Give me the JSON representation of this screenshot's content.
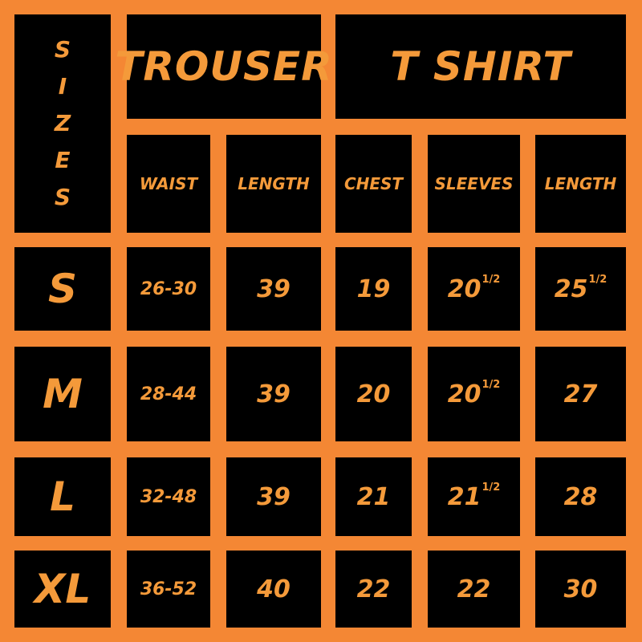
{
  "title_sizes": [
    "S",
    "I",
    "Z",
    "E",
    "S"
  ],
  "group_headers": {
    "trouser": "TROUSER",
    "tshirt": "T SHIRT"
  },
  "column_headers": [
    "WAIST",
    "LENGTH",
    "CHEST",
    "SLEEVES",
    "LENGTH"
  ],
  "rows": [
    {
      "size": "S",
      "cells": [
        {
          "v": "26-30",
          "s": ""
        },
        {
          "v": "39",
          "s": ""
        },
        {
          "v": "19",
          "s": ""
        },
        {
          "v": "20",
          "s": "1/2"
        },
        {
          "v": "25",
          "s": "1/2"
        }
      ]
    },
    {
      "size": "M",
      "cells": [
        {
          "v": "28-44",
          "s": ""
        },
        {
          "v": "39",
          "s": ""
        },
        {
          "v": "20",
          "s": ""
        },
        {
          "v": "20",
          "s": "1/2"
        },
        {
          "v": "27",
          "s": ""
        }
      ]
    },
    {
      "size": "L",
      "cells": [
        {
          "v": "32-48",
          "s": ""
        },
        {
          "v": "39",
          "s": ""
        },
        {
          "v": "21",
          "s": ""
        },
        {
          "v": "21",
          "s": "1/2"
        },
        {
          "v": "28",
          "s": ""
        }
      ]
    },
    {
      "size": "XL",
      "cells": [
        {
          "v": "36-52",
          "s": ""
        },
        {
          "v": "40",
          "s": ""
        },
        {
          "v": "22",
          "s": ""
        },
        {
          "v": "22",
          "s": ""
        },
        {
          "v": "30",
          "s": ""
        }
      ]
    }
  ],
  "colors": {
    "background": "#F48734",
    "cell": "#000000",
    "text": "#F49A3A"
  }
}
